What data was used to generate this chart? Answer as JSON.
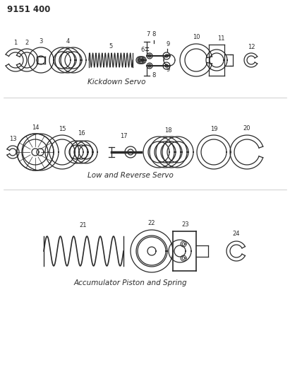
{
  "title": "9151 400",
  "bg_color": "#ffffff",
  "line_color": "#2a2a2a",
  "section1_label": "Kickdown Servo",
  "section2_label": "Low and Reverse Servo",
  "section3_label": "Accumulator Piston and Spring"
}
